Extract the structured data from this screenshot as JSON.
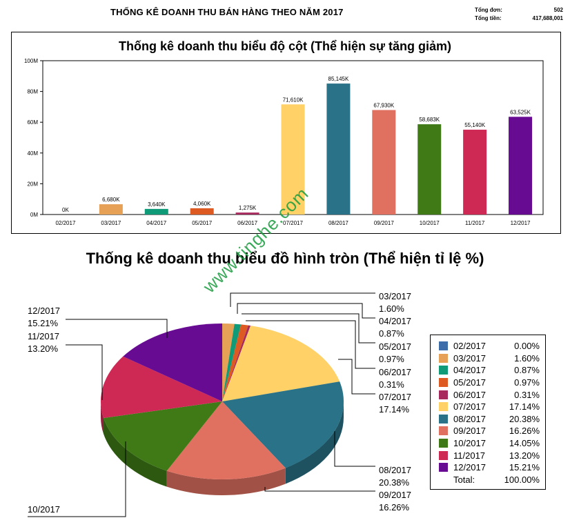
{
  "header": {
    "title": "THỐNG KÊ DOANH THU BÁN HÀNG THEO NĂM 2017",
    "total_orders_label": "Tổng đơn:",
    "total_orders_value": "502",
    "total_money_label": "Tổng tiền:",
    "total_money_value": "417,688,001"
  },
  "watermark": "www.tinghe.com",
  "chart_data": [
    {
      "type": "bar",
      "title": "Thống kê doanh thu biểu độ cột (Thể hiện sự tăng giảm)",
      "categories": [
        "02/2017",
        "03/2017",
        "04/2017",
        "05/2017",
        "06/2017",
        "07/2017",
        "08/2017",
        "09/2017",
        "10/2017",
        "11/2017",
        "12/2017"
      ],
      "values": [
        0,
        6680,
        3640,
        4060,
        1275,
        71610,
        85145,
        67930,
        58683,
        55140,
        63525
      ],
      "data_labels": [
        "0K",
        "6,680K",
        "3,640K",
        "4,060K",
        "1,275K",
        "71,610K",
        "85,145K",
        "67,930K",
        "58,683K",
        "55,140K",
        "63,525K"
      ],
      "unit": "K",
      "ylim": [
        0,
        100000
      ],
      "yticks": [
        "0M",
        "20M",
        "40M",
        "60M",
        "80M",
        "100M"
      ],
      "colors": [
        "#3c6eaa",
        "#e6a157",
        "#0f9b77",
        "#de5a23",
        "#a8295e",
        "#ffd166",
        "#2a7287",
        "#e07060",
        "#3f7a16",
        "#ce2955",
        "#670b93"
      ],
      "grid": false,
      "legend": "none"
    },
    {
      "type": "pie",
      "title": "Thống kê doanh thu biểu đồ hình tròn (Thể hiện tỉ lệ %)",
      "labels": [
        "02/2017",
        "03/2017",
        "04/2017",
        "05/2017",
        "06/2017",
        "07/2017",
        "08/2017",
        "09/2017",
        "10/2017",
        "11/2017",
        "12/2017"
      ],
      "values": [
        0.0,
        1.6,
        0.87,
        0.97,
        0.31,
        17.14,
        20.38,
        16.26,
        14.05,
        13.2,
        15.21
      ],
      "percent_labels": [
        "0.00%",
        "1.60%",
        "0.87%",
        "0.97%",
        "0.31%",
        "17.14%",
        "20.38%",
        "16.26%",
        "14.05%",
        "13.20%",
        "15.21%"
      ],
      "colors": [
        "#3c6eaa",
        "#e6a157",
        "#0f9b77",
        "#de5a23",
        "#a8295e",
        "#ffd166",
        "#2a7287",
        "#e07060",
        "#3f7a16",
        "#ce2955",
        "#670b93"
      ],
      "legend": "right",
      "legend_total_label": "Total:",
      "legend_total_value": "100.00%"
    }
  ]
}
